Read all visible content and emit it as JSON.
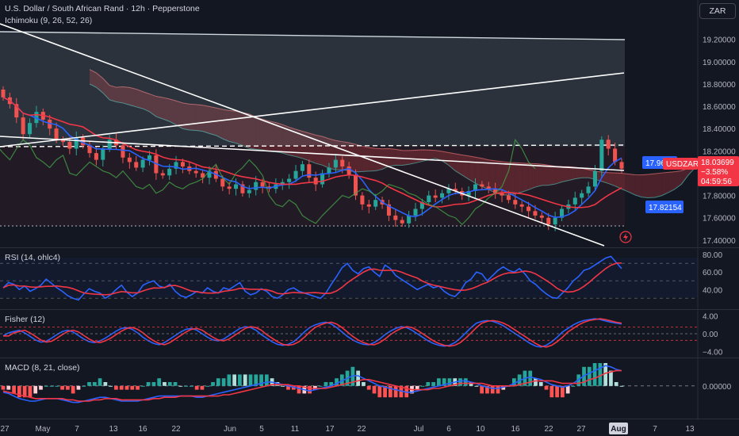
{
  "header": {
    "symbol_title": "U.S. Dollar / South African Rand · 12h · Pepperstone",
    "indicator": "Ichimoku (9, 26, 52, 26)",
    "currency_button": "ZAR"
  },
  "colors": {
    "background": "#131722",
    "bull": "#26a69a",
    "bear": "#ef5350",
    "conversion": "#2962ff",
    "base": "#f23645",
    "lagging": "#43a047",
    "cloud_bull": "#1b5e57",
    "cloud_bear": "#7a2b35",
    "channel": "#78909c",
    "trendline": "#ffffff",
    "rsi": "#2962ff",
    "rsi_signal": "#f23645",
    "grid": "#2a2e39",
    "axis_text": "#b2b5be"
  },
  "price_axis": {
    "ticks": [
      "19.20000",
      "19.00000",
      "18.80000",
      "18.60000",
      "18.40000",
      "18.20000",
      "17.80000",
      "17.60000",
      "17.40000"
    ],
    "tick_values": [
      19.2,
      19.0,
      18.8,
      18.6,
      18.4,
      18.2,
      17.8,
      17.6,
      17.4
    ],
    "range": [
      17.335,
      19.34
    ]
  },
  "labels": {
    "symbol_tag": "USDZAR",
    "last_price": "18.03699",
    "change_pct": "−3.58%",
    "countdown": "04:59:56",
    "conversion_line": "17.96402",
    "base_line": "17.82154"
  },
  "x_axis": {
    "ticks": [
      "27",
      "May",
      "7",
      "13",
      "16",
      "22",
      "Jun",
      "5",
      "11",
      "17",
      "22",
      "Jul",
      "6",
      "10",
      "16",
      "22",
      "27",
      "Aug",
      "7",
      "13"
    ],
    "highlight": "Aug"
  },
  "rsi": {
    "title": "RSI (14, ohlc4)",
    "ticks": [
      "80.00",
      "60.00",
      "40.00"
    ],
    "tick_values": [
      80,
      60,
      40
    ],
    "levels": [
      70,
      50,
      30
    ],
    "range": [
      23,
      82
    ],
    "values": [
      42,
      48,
      46,
      40,
      44,
      38,
      41,
      45,
      52,
      47,
      42,
      38,
      33,
      30,
      28,
      35,
      41,
      38,
      36,
      30,
      34,
      40,
      45,
      37,
      32,
      36,
      45,
      48,
      50,
      44,
      42,
      46,
      38,
      33,
      31,
      34,
      38,
      36,
      42,
      38,
      36,
      42,
      40,
      44,
      48,
      38,
      34,
      36,
      41,
      38,
      32,
      30,
      34,
      40,
      42,
      38,
      36,
      34,
      32,
      30,
      36,
      46,
      55,
      65,
      70,
      62,
      58,
      64,
      66,
      60,
      55,
      68,
      64,
      56,
      52,
      48,
      44,
      40,
      43,
      46,
      42,
      44,
      38,
      34,
      32,
      38,
      48,
      52,
      60,
      58,
      50,
      56,
      62,
      66,
      62,
      60,
      64,
      58,
      50,
      46,
      40,
      35,
      31,
      30,
      36,
      42,
      50,
      55,
      62,
      64,
      68,
      72,
      76,
      78,
      71,
      64
    ]
  },
  "fisher": {
    "title": "Fisher (12)",
    "ticks": [
      "4.00",
      "0.00",
      "−4.00"
    ],
    "tick_values": [
      4,
      0,
      -4
    ],
    "levels": [
      1.5,
      0,
      -1.5
    ],
    "range": [
      -4.3,
      4.3
    ],
    "values": [
      -0.5,
      0.2,
      0.5,
      0.8,
      0.2,
      -0.6,
      -1.4,
      -1.9,
      -1.7,
      -1.0,
      -0.2,
      0.5,
      0.8,
      0.4,
      -0.4,
      -1.2,
      -1.8,
      -2.0,
      -1.6,
      -1.0,
      -0.2,
      0.6,
      1.2,
      1.4,
      1.0,
      0.2,
      -0.8,
      -1.6,
      -2.2,
      -2.5,
      -2.0,
      -1.2,
      -0.4,
      0.4,
      1.0,
      1.2,
      0.8,
      0.0,
      -0.8,
      -1.4,
      -1.6,
      -1.2,
      -0.4,
      0.4,
      1.2,
      1.6,
      1.4,
      0.8,
      -0.2,
      -1.0,
      -1.8,
      -2.4,
      -2.6,
      -2.4,
      -1.8,
      -0.8,
      0.4,
      1.4,
      2.0,
      2.4,
      2.6,
      2.2,
      1.4,
      0.4,
      -0.6,
      -1.4,
      -2.0,
      -2.4,
      -2.5,
      -2.0,
      -1.2,
      -0.2,
      0.6,
      1.2,
      1.6,
      1.4,
      0.8,
      0.0,
      -0.8,
      -1.6,
      -2.2,
      -2.6,
      -2.8,
      -2.6,
      -2.0,
      -1.0,
      0.2,
      1.4,
      2.4,
      2.8,
      3.0,
      2.8,
      2.4,
      1.8,
      1.0,
      0.2,
      -0.6,
      -1.4,
      -2.2,
      -2.8,
      -3.0,
      -2.6,
      -1.8,
      -0.8,
      0.4,
      1.2,
      2.0,
      2.6,
      3.0,
      3.2,
      3.4,
      3.2,
      2.9,
      2.6,
      2.4,
      2.2
    ]
  },
  "macd": {
    "title": "MACD (8, 21, close)",
    "ticks": [
      "0.00000"
    ],
    "tick_values": [
      0
    ],
    "range": [
      -0.22,
      0.18
    ],
    "macd": [
      -0.05,
      -0.06,
      -0.08,
      -0.1,
      -0.11,
      -0.12,
      -0.12,
      -0.11,
      -0.1,
      -0.1,
      -0.1,
      -0.11,
      -0.12,
      -0.13,
      -0.13,
      -0.12,
      -0.11,
      -0.1,
      -0.09,
      -0.09,
      -0.1,
      -0.11,
      -0.12,
      -0.12,
      -0.12,
      -0.12,
      -0.11,
      -0.1,
      -0.09,
      -0.08,
      -0.08,
      -0.08,
      -0.08,
      -0.08,
      -0.08,
      -0.08,
      -0.09,
      -0.09,
      -0.08,
      -0.07,
      -0.06,
      -0.05,
      -0.04,
      -0.03,
      -0.02,
      -0.01,
      0.0,
      0.01,
      0.02,
      0.03,
      0.03,
      0.02,
      0.01,
      0.0,
      -0.01,
      -0.02,
      -0.03,
      -0.04,
      -0.03,
      -0.02,
      -0.01,
      0.0,
      0.02,
      0.04,
      0.06,
      0.08,
      0.08,
      0.06,
      0.04,
      0.02,
      0.0,
      -0.01,
      -0.02,
      -0.03,
      -0.04,
      -0.05,
      -0.05,
      -0.04,
      -0.03,
      -0.02,
      -0.01,
      0.0,
      0.01,
      0.02,
      0.03,
      0.04,
      0.04,
      0.03,
      0.02,
      0.0,
      -0.01,
      -0.02,
      -0.02,
      -0.01,
      0.0,
      0.02,
      0.04,
      0.06,
      0.07,
      0.06,
      0.05,
      0.03,
      0.01,
      0.0,
      -0.01,
      0.0,
      0.02,
      0.05,
      0.08,
      0.1,
      0.12,
      0.14,
      0.16,
      0.15,
      0.13,
      0.12
    ],
    "signal": [
      -0.04,
      -0.05,
      -0.06,
      -0.07,
      -0.08,
      -0.09,
      -0.1,
      -0.1,
      -0.1,
      -0.1,
      -0.1,
      -0.1,
      -0.11,
      -0.11,
      -0.12,
      -0.12,
      -0.12,
      -0.11,
      -0.11,
      -0.1,
      -0.1,
      -0.1,
      -0.11,
      -0.11,
      -0.11,
      -0.11,
      -0.11,
      -0.11,
      -0.1,
      -0.1,
      -0.09,
      -0.09,
      -0.09,
      -0.08,
      -0.08,
      -0.08,
      -0.08,
      -0.08,
      -0.08,
      -0.08,
      -0.08,
      -0.07,
      -0.07,
      -0.06,
      -0.05,
      -0.04,
      -0.03,
      -0.02,
      -0.01,
      0.0,
      0.01,
      0.01,
      0.01,
      0.01,
      0.0,
      0.0,
      -0.01,
      -0.02,
      -0.02,
      -0.02,
      -0.02,
      -0.01,
      0.0,
      0.01,
      0.02,
      0.03,
      0.04,
      0.05,
      0.05,
      0.04,
      0.03,
      0.02,
      0.01,
      0.0,
      -0.01,
      -0.02,
      -0.03,
      -0.03,
      -0.03,
      -0.03,
      -0.02,
      -0.02,
      -0.01,
      0.0,
      0.01,
      0.02,
      0.02,
      0.02,
      0.02,
      0.02,
      0.01,
      0.0,
      0.0,
      0.0,
      0.0,
      0.0,
      0.01,
      0.02,
      0.03,
      0.04,
      0.04,
      0.04,
      0.04,
      0.03,
      0.02,
      0.02,
      0.02,
      0.02,
      0.03,
      0.05,
      0.06,
      0.08,
      0.1,
      0.11,
      0.12,
      0.12
    ]
  },
  "chart_data": {
    "type": "candlestick",
    "title": "U.S. Dollar / South African Rand · 12h · Pepperstone",
    "symbol": "USDZAR",
    "timeframe": "12h",
    "ylim": [
      17.335,
      19.34
    ],
    "x_tick_labels": [
      "27",
      "May",
      "7",
      "13",
      "16",
      "22",
      "Jun",
      "5",
      "11",
      "17",
      "22",
      "Jul",
      "6",
      "10",
      "16",
      "22",
      "27",
      "Aug",
      "7",
      "13"
    ],
    "close": [
      18.68,
      18.62,
      18.5,
      18.35,
      18.45,
      18.55,
      18.48,
      18.4,
      18.3,
      18.28,
      18.22,
      18.32,
      18.25,
      18.18,
      18.12,
      18.22,
      18.3,
      18.25,
      18.14,
      18.1,
      18.05,
      18.12,
      18.16,
      18.0,
      17.98,
      18.04,
      18.1,
      18.06,
      18.02,
      18.0,
      17.96,
      18.02,
      17.95,
      17.88,
      17.86,
      17.9,
      17.82,
      17.85,
      17.92,
      17.88,
      17.86,
      17.9,
      17.92,
      17.95,
      18.02,
      18.08,
      17.96,
      17.9,
      18.0,
      18.05,
      18.12,
      18.06,
      17.98,
      17.8,
      17.72,
      17.7,
      17.76,
      17.72,
      17.62,
      17.58,
      17.55,
      17.62,
      17.68,
      17.74,
      17.8,
      17.78,
      17.82,
      17.86,
      17.84,
      17.8,
      17.84,
      17.9,
      17.88,
      17.86,
      17.82,
      17.8,
      17.76,
      17.72,
      17.7,
      17.66,
      17.62,
      17.6,
      17.54,
      17.6,
      17.68,
      17.72,
      17.78,
      17.82,
      17.88,
      18.02,
      18.3,
      18.22,
      18.1,
      18.04
    ]
  }
}
